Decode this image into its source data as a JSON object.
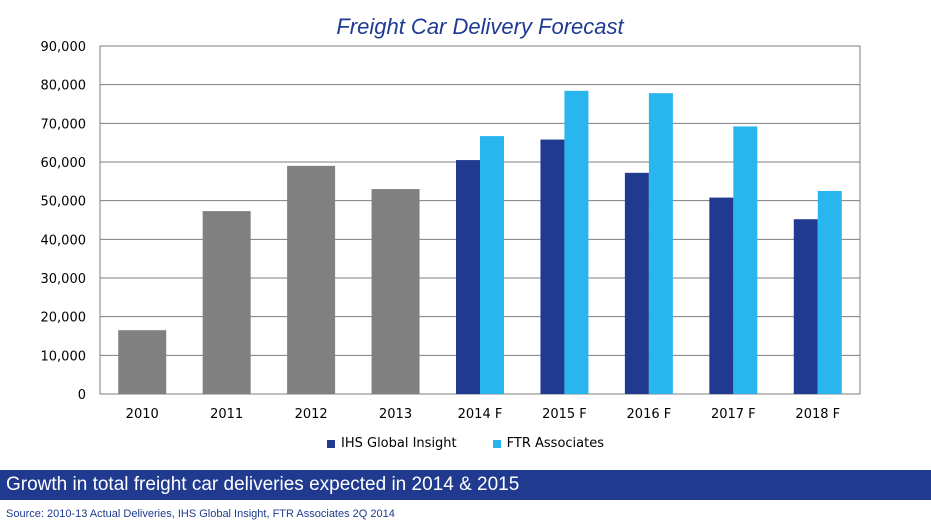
{
  "chart_data": {
    "type": "bar",
    "title": "Freight Car Delivery Forecast",
    "categories": [
      "2010",
      "2011",
      "2012",
      "2013",
      "2014 F",
      "2015 F",
      "2016 F",
      "2017 F",
      "2018 F"
    ],
    "series": [
      {
        "name": "Actual",
        "color": "#808080",
        "values": [
          16500,
          47300,
          59000,
          53000,
          null,
          null,
          null,
          null,
          null
        ]
      },
      {
        "name": "IHS Global Insight",
        "color": "#1f3a8f",
        "values": [
          null,
          null,
          null,
          null,
          60500,
          65800,
          57200,
          50800,
          45200
        ]
      },
      {
        "name": "FTR Associates",
        "color": "#29b6ee",
        "values": [
          null,
          null,
          null,
          null,
          66700,
          78400,
          77800,
          69200,
          52500
        ]
      }
    ],
    "ylim": [
      0,
      90000
    ],
    "yticks": [
      "0",
      "10,000",
      "20,000",
      "30,000",
      "40,000",
      "50,000",
      "60,000",
      "70,000",
      "80,000",
      "90,000"
    ],
    "grid": true,
    "legend": {
      "placement": "bottom",
      "items": [
        {
          "label": "IHS Global Insight",
          "color": "#1f3a8f"
        },
        {
          "label": "FTR Associates",
          "color": "#29b6ee"
        }
      ]
    }
  },
  "banner": "Growth in total freight car deliveries expected in 2014 & 2015",
  "source": "Source: 2010-13 Actual Deliveries, IHS Global Insight, FTR Associates 2Q 2014"
}
